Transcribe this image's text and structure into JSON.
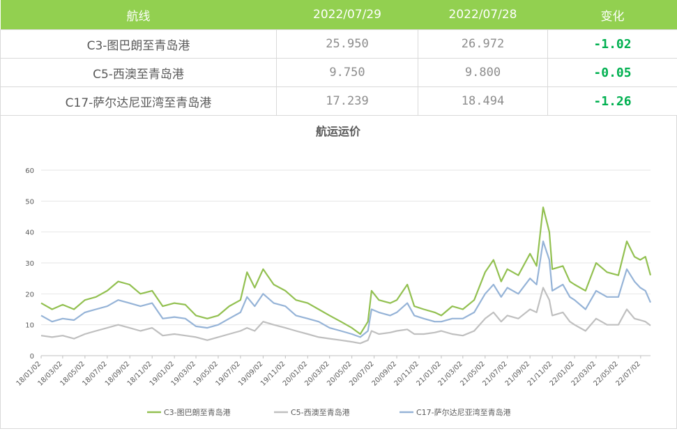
{
  "table": {
    "headers": [
      "航线",
      "2022/07/29",
      "2022/07/28",
      "变化"
    ],
    "rows": [
      {
        "route": "C3-图巴朗至青岛港",
        "v1": "25.950",
        "v2": "26.972",
        "change": "-1.02"
      },
      {
        "route": "C5-西澳至青岛港",
        "v1": "9.750",
        "v2": "9.800",
        "change": "-0.05"
      },
      {
        "route": "C17-萨尔达尼亚湾至青岛港",
        "v1": "17.239",
        "v2": "18.494",
        "change": "-1.26"
      }
    ]
  },
  "colors": {
    "header_bg": "#92d050",
    "c3": "#92c050",
    "c5": "#bfbfbf",
    "c17": "#95b3d7",
    "change_text": "#00b050"
  },
  "chart_data": {
    "type": "line",
    "title": "航运运价",
    "y_ticks": [
      "0",
      "10",
      "20",
      "30",
      "40",
      "50",
      "60"
    ],
    "ylim": [
      0,
      60
    ],
    "x_ticks": [
      "18/01/02",
      "18/03/02",
      "18/05/02",
      "18/07/02",
      "18/09/02",
      "18/11/02",
      "19/01/02",
      "19/03/02",
      "19/05/02",
      "19/07/02",
      "19/09/02",
      "19/11/02",
      "20/01/02",
      "20/03/02",
      "20/05/02",
      "20/07/02",
      "20/09/02",
      "20/11/02",
      "21/01/02",
      "21/03/02",
      "21/05/02",
      "21/07/02",
      "21/09/02",
      "21/11/02",
      "22/01/02",
      "22/03/02",
      "22/05/02",
      "22/07/02"
    ],
    "x_range": [
      "2018-01-02",
      "2022-07-29"
    ],
    "grid": "horizontal",
    "legend": "bottom",
    "series": [
      {
        "name": "C3-图巴朗至青岛港",
        "color": "#92c050",
        "points": [
          [
            "2018-01-02",
            17
          ],
          [
            "2018-02-01",
            15
          ],
          [
            "2018-03-02",
            16.5
          ],
          [
            "2018-04-02",
            15
          ],
          [
            "2018-05-02",
            18
          ],
          [
            "2018-06-01",
            19
          ],
          [
            "2018-07-02",
            21
          ],
          [
            "2018-08-01",
            24
          ],
          [
            "2018-09-01",
            23
          ],
          [
            "2018-10-01",
            20
          ],
          [
            "2018-11-02",
            21
          ],
          [
            "2018-12-01",
            16
          ],
          [
            "2019-01-02",
            17
          ],
          [
            "2019-02-01",
            16.5
          ],
          [
            "2019-03-02",
            13
          ],
          [
            "2019-04-02",
            12
          ],
          [
            "2019-05-02",
            13
          ],
          [
            "2019-06-01",
            16
          ],
          [
            "2019-07-02",
            18
          ],
          [
            "2019-07-20",
            27
          ],
          [
            "2019-08-10",
            22
          ],
          [
            "2019-09-02",
            28
          ],
          [
            "2019-10-01",
            23
          ],
          [
            "2019-11-02",
            21
          ],
          [
            "2019-12-01",
            18
          ],
          [
            "2020-01-02",
            17
          ],
          [
            "2020-02-01",
            15
          ],
          [
            "2020-03-02",
            13
          ],
          [
            "2020-04-02",
            11
          ],
          [
            "2020-05-02",
            9
          ],
          [
            "2020-05-25",
            7
          ],
          [
            "2020-06-15",
            11
          ],
          [
            "2020-06-25",
            21
          ],
          [
            "2020-07-15",
            18
          ],
          [
            "2020-08-15",
            17
          ],
          [
            "2020-09-02",
            18
          ],
          [
            "2020-10-01",
            23
          ],
          [
            "2020-10-20",
            16
          ],
          [
            "2020-11-15",
            15
          ],
          [
            "2020-12-15",
            14
          ],
          [
            "2021-01-02",
            13
          ],
          [
            "2021-02-01",
            16
          ],
          [
            "2021-03-02",
            15
          ],
          [
            "2021-04-02",
            18
          ],
          [
            "2021-05-02",
            27
          ],
          [
            "2021-05-25",
            31
          ],
          [
            "2021-06-15",
            24
          ],
          [
            "2021-07-02",
            28
          ],
          [
            "2021-08-01",
            26
          ],
          [
            "2021-09-02",
            33
          ],
          [
            "2021-09-20",
            29
          ],
          [
            "2021-10-08",
            48
          ],
          [
            "2021-10-25",
            40
          ],
          [
            "2021-11-02",
            28
          ],
          [
            "2021-12-01",
            29
          ],
          [
            "2021-12-20",
            24
          ],
          [
            "2022-01-02",
            23
          ],
          [
            "2022-02-01",
            21
          ],
          [
            "2022-03-02",
            30
          ],
          [
            "2022-04-01",
            27
          ],
          [
            "2022-05-02",
            26
          ],
          [
            "2022-05-25",
            37
          ],
          [
            "2022-06-15",
            32
          ],
          [
            "2022-07-01",
            31
          ],
          [
            "2022-07-15",
            32
          ],
          [
            "2022-07-29",
            26
          ]
        ]
      },
      {
        "name": "C5-西澳至青岛港",
        "color": "#bfbfbf",
        "points": [
          [
            "2018-01-02",
            6.5
          ],
          [
            "2018-02-01",
            6
          ],
          [
            "2018-03-02",
            6.5
          ],
          [
            "2018-04-02",
            5.5
          ],
          [
            "2018-05-02",
            7
          ],
          [
            "2018-06-01",
            8
          ],
          [
            "2018-07-02",
            9
          ],
          [
            "2018-08-01",
            10
          ],
          [
            "2018-09-01",
            9
          ],
          [
            "2018-10-01",
            8
          ],
          [
            "2018-11-02",
            9
          ],
          [
            "2018-12-01",
            6.5
          ],
          [
            "2019-01-02",
            7
          ],
          [
            "2019-02-01",
            6.5
          ],
          [
            "2019-03-02",
            6
          ],
          [
            "2019-04-02",
            5
          ],
          [
            "2019-05-02",
            6
          ],
          [
            "2019-06-01",
            7
          ],
          [
            "2019-07-02",
            8
          ],
          [
            "2019-07-20",
            9
          ],
          [
            "2019-08-10",
            8
          ],
          [
            "2019-09-02",
            11
          ],
          [
            "2019-10-01",
            10
          ],
          [
            "2019-11-02",
            9
          ],
          [
            "2019-12-01",
            8
          ],
          [
            "2020-01-02",
            7
          ],
          [
            "2020-02-01",
            6
          ],
          [
            "2020-03-02",
            5.5
          ],
          [
            "2020-04-02",
            5
          ],
          [
            "2020-05-02",
            4.5
          ],
          [
            "2020-05-25",
            4
          ],
          [
            "2020-06-15",
            5
          ],
          [
            "2020-06-25",
            8
          ],
          [
            "2020-07-15",
            7
          ],
          [
            "2020-08-15",
            7.5
          ],
          [
            "2020-09-02",
            8
          ],
          [
            "2020-10-01",
            8.5
          ],
          [
            "2020-10-20",
            7
          ],
          [
            "2020-11-15",
            7
          ],
          [
            "2020-12-15",
            7.5
          ],
          [
            "2021-01-02",
            8
          ],
          [
            "2021-02-01",
            7
          ],
          [
            "2021-03-02",
            6.5
          ],
          [
            "2021-04-02",
            8
          ],
          [
            "2021-05-02",
            12
          ],
          [
            "2021-05-25",
            14
          ],
          [
            "2021-06-15",
            11
          ],
          [
            "2021-07-02",
            13
          ],
          [
            "2021-08-01",
            12
          ],
          [
            "2021-09-02",
            15
          ],
          [
            "2021-09-20",
            14
          ],
          [
            "2021-10-08",
            22
          ],
          [
            "2021-10-25",
            18
          ],
          [
            "2021-11-02",
            13
          ],
          [
            "2021-12-01",
            14
          ],
          [
            "2021-12-20",
            11
          ],
          [
            "2022-01-02",
            10
          ],
          [
            "2022-02-01",
            8
          ],
          [
            "2022-03-02",
            12
          ],
          [
            "2022-04-01",
            10
          ],
          [
            "2022-05-02",
            10
          ],
          [
            "2022-05-25",
            15
          ],
          [
            "2022-06-15",
            12
          ],
          [
            "2022-07-01",
            11.5
          ],
          [
            "2022-07-15",
            11
          ],
          [
            "2022-07-29",
            9.75
          ]
        ]
      },
      {
        "name": "C17-萨尔达尼亚湾至青岛港",
        "color": "#95b3d7",
        "points": [
          [
            "2018-01-02",
            13
          ],
          [
            "2018-02-01",
            11
          ],
          [
            "2018-03-02",
            12
          ],
          [
            "2018-04-02",
            11.5
          ],
          [
            "2018-05-02",
            14
          ],
          [
            "2018-06-01",
            15
          ],
          [
            "2018-07-02",
            16
          ],
          [
            "2018-08-01",
            18
          ],
          [
            "2018-09-01",
            17
          ],
          [
            "2018-10-01",
            16
          ],
          [
            "2018-11-02",
            17
          ],
          [
            "2018-12-01",
            12
          ],
          [
            "2019-01-02",
            12.5
          ],
          [
            "2019-02-01",
            12
          ],
          [
            "2019-03-02",
            9.5
          ],
          [
            "2019-04-02",
            9
          ],
          [
            "2019-05-02",
            10
          ],
          [
            "2019-06-01",
            12
          ],
          [
            "2019-07-02",
            14
          ],
          [
            "2019-07-20",
            19
          ],
          [
            "2019-08-10",
            16
          ],
          [
            "2019-09-02",
            20
          ],
          [
            "2019-10-01",
            17
          ],
          [
            "2019-11-02",
            16
          ],
          [
            "2019-12-01",
            13
          ],
          [
            "2020-01-02",
            12
          ],
          [
            "2020-02-01",
            11
          ],
          [
            "2020-03-02",
            9
          ],
          [
            "2020-04-02",
            8
          ],
          [
            "2020-05-02",
            7
          ],
          [
            "2020-05-25",
            6
          ],
          [
            "2020-06-15",
            8
          ],
          [
            "2020-06-25",
            15
          ],
          [
            "2020-07-15",
            14
          ],
          [
            "2020-08-15",
            13
          ],
          [
            "2020-09-02",
            14
          ],
          [
            "2020-10-01",
            17
          ],
          [
            "2020-10-20",
            13
          ],
          [
            "2020-11-15",
            12
          ],
          [
            "2020-12-15",
            11
          ],
          [
            "2021-01-02",
            11
          ],
          [
            "2021-02-01",
            12
          ],
          [
            "2021-03-02",
            12
          ],
          [
            "2021-04-02",
            14
          ],
          [
            "2021-05-02",
            20
          ],
          [
            "2021-05-25",
            23
          ],
          [
            "2021-06-15",
            19
          ],
          [
            "2021-07-02",
            22
          ],
          [
            "2021-08-01",
            20
          ],
          [
            "2021-09-02",
            25
          ],
          [
            "2021-09-20",
            23
          ],
          [
            "2021-10-08",
            37
          ],
          [
            "2021-10-25",
            31
          ],
          [
            "2021-11-02",
            21
          ],
          [
            "2021-12-01",
            23
          ],
          [
            "2021-12-20",
            19
          ],
          [
            "2022-01-02",
            18
          ],
          [
            "2022-02-01",
            15
          ],
          [
            "2022-03-02",
            21
          ],
          [
            "2022-04-01",
            19
          ],
          [
            "2022-05-02",
            19
          ],
          [
            "2022-05-25",
            28
          ],
          [
            "2022-06-15",
            24
          ],
          [
            "2022-07-01",
            22
          ],
          [
            "2022-07-15",
            21
          ],
          [
            "2022-07-29",
            17.2
          ]
        ]
      }
    ]
  }
}
